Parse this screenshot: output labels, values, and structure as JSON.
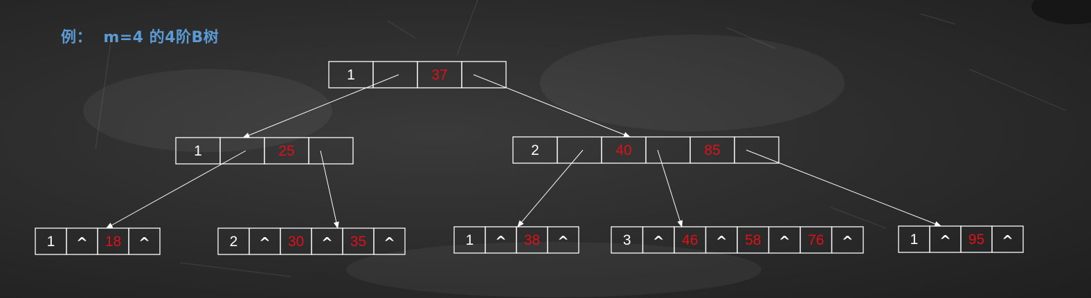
{
  "title": "例：  m=4 的4阶B树",
  "colors": {
    "title": "#5b9bd5",
    "count_text": "#ffffff",
    "key_text": "#e0101a",
    "pointer_text": "#ffffff",
    "cell_border": "#ffffff",
    "edge": "#ffffff"
  },
  "null_pointer_symbol": "^",
  "nodes": [
    {
      "id": "root",
      "count": "1",
      "keys": [
        "37"
      ],
      "leaf": false
    },
    {
      "id": "left",
      "count": "1",
      "keys": [
        "25"
      ],
      "leaf": false
    },
    {
      "id": "right",
      "count": "2",
      "keys": [
        "40",
        "85"
      ],
      "leaf": false
    },
    {
      "id": "leaf1",
      "count": "1",
      "keys": [
        "18"
      ],
      "leaf": true
    },
    {
      "id": "leaf2",
      "count": "2",
      "keys": [
        "30",
        "35"
      ],
      "leaf": true
    },
    {
      "id": "leaf3",
      "count": "1",
      "keys": [
        "38"
      ],
      "leaf": true
    },
    {
      "id": "leaf4",
      "count": "3",
      "keys": [
        "46",
        "58",
        "76"
      ],
      "leaf": true
    },
    {
      "id": "leaf5",
      "count": "1",
      "keys": [
        "95"
      ],
      "leaf": true
    }
  ],
  "edges": [
    {
      "from": "root",
      "pointer": 0,
      "to": "left"
    },
    {
      "from": "root",
      "pointer": 1,
      "to": "right"
    },
    {
      "from": "left",
      "pointer": 0,
      "to": "leaf1"
    },
    {
      "from": "left",
      "pointer": 1,
      "to": "leaf2"
    },
    {
      "from": "right",
      "pointer": 0,
      "to": "leaf3"
    },
    {
      "from": "right",
      "pointer": 1,
      "to": "leaf4"
    },
    {
      "from": "right",
      "pointer": 2,
      "to": "leaf5"
    }
  ]
}
